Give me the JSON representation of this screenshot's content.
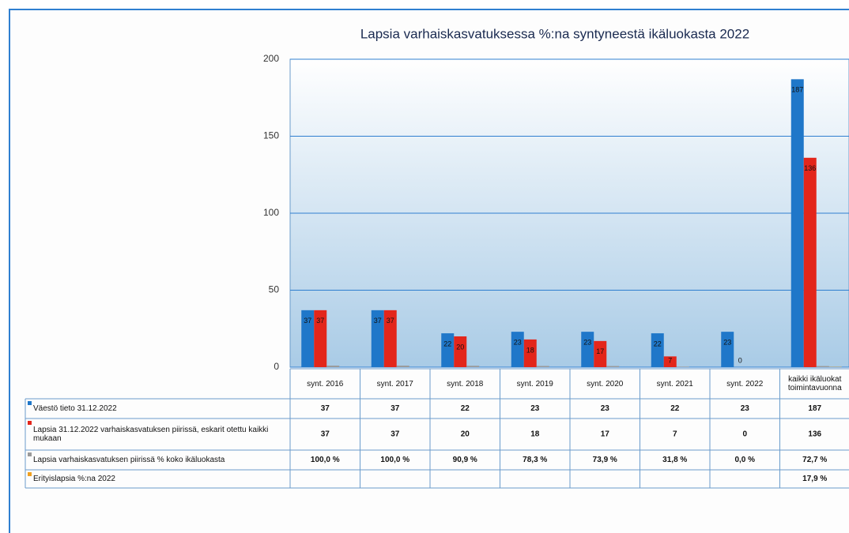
{
  "chart_data": {
    "type": "bar",
    "title": "Lapsia varhaiskasvatuksessa %:na syntyneestä ikäluokasta 2022",
    "categories": [
      "synt. 2016",
      "synt. 2017",
      "synt. 2018",
      "synt. 2019",
      "synt. 2020",
      "synt. 2021",
      "synt. 2022",
      "kaikki ikäluokat toimintavuonna"
    ],
    "series": [
      {
        "name": "Väestö tieto 31.12.2022",
        "color": "#1f77c9",
        "values": [
          37,
          37,
          22,
          23,
          23,
          22,
          23,
          187
        ]
      },
      {
        "name": "Lapsia 31.12.2022 varhaiskasvatuksen piirissä, eskarit otettu kaikki mukaan",
        "color": "#e3261b",
        "values": [
          37,
          37,
          20,
          18,
          17,
          7,
          0,
          136
        ]
      },
      {
        "name": "Lapsia varhaiskasvatuksen piirissä % koko ikäluokasta",
        "color": "#9a9a9a",
        "values": [
          1.0,
          1.0,
          0.909,
          0.783,
          0.739,
          0.318,
          0.0,
          0.727
        ],
        "value_labels": [
          "100,0 %",
          "100,0 %",
          "90,9 %",
          "78,3 %",
          "73,9 %",
          "31,8 %",
          "0,0 %",
          "72,7 %"
        ]
      },
      {
        "name": "Erityislapsia %:na 2022",
        "color": "#f0a020",
        "values": [
          null,
          null,
          null,
          null,
          null,
          null,
          null,
          0.179
        ],
        "value_labels": [
          null,
          null,
          null,
          null,
          null,
          null,
          null,
          "17,9 %"
        ]
      }
    ],
    "ylim": [
      0,
      200
    ],
    "yticks": [
      0,
      50,
      100,
      150,
      200
    ],
    "grid": true
  }
}
